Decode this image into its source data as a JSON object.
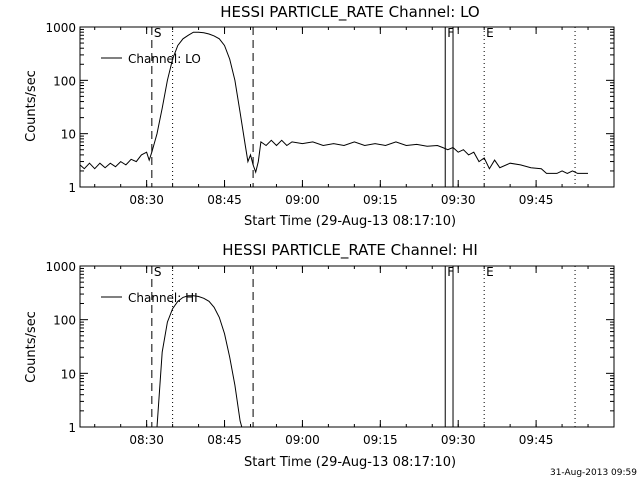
{
  "footer": {
    "timestamp": "31-Aug-2013 09:59"
  },
  "chart_data": [
    {
      "type": "line",
      "title": "HESSI PARTICLE_RATE Channel: LO",
      "xlabel": "Start Time (29-Aug-13 08:17:10)",
      "ylabel": "Counts/sec",
      "yscale": "log",
      "ylim": [
        1,
        1000
      ],
      "xlim": [
        "08:17:10",
        "10:00:00"
      ],
      "xticks": [
        "08:30",
        "08:45",
        "09:00",
        "09:15",
        "09:30",
        "09:45"
      ],
      "yticks": [
        "1",
        "10",
        "100",
        "1000"
      ],
      "legend": {
        "label": "Channel: LO",
        "placement": "top-left"
      },
      "markers": [
        {
          "time": "08:31:00",
          "label": "S",
          "style": "dashed"
        },
        {
          "time": "08:35:00",
          "label": "",
          "style": "dotted"
        },
        {
          "time": "08:50:30",
          "label": "",
          "style": "dashed"
        },
        {
          "time": "09:27:30",
          "label": "F",
          "style": "solid"
        },
        {
          "time": "09:29:00",
          "label": "",
          "style": "solid"
        },
        {
          "time": "09:35:00",
          "label": "E",
          "style": "dotted"
        },
        {
          "time": "09:52:30",
          "label": "",
          "style": "dotted"
        }
      ],
      "series": [
        {
          "name": "Channel: LO",
          "points": [
            [
              "08:17:10",
              2.6
            ],
            [
              "08:18:00",
              2.2
            ],
            [
              "08:19:00",
              2.8
            ],
            [
              "08:20:00",
              2.2
            ],
            [
              "08:21:00",
              2.8
            ],
            [
              "08:22:00",
              2.3
            ],
            [
              "08:23:00",
              2.8
            ],
            [
              "08:24:00",
              2.4
            ],
            [
              "08:25:00",
              3.0
            ],
            [
              "08:26:00",
              2.6
            ],
            [
              "08:27:00",
              3.3
            ],
            [
              "08:28:00",
              3.0
            ],
            [
              "08:29:00",
              4.0
            ],
            [
              "08:30:00",
              4.5
            ],
            [
              "08:30:30",
              3.2
            ],
            [
              "08:31:00",
              4.5
            ],
            [
              "08:32:00",
              10
            ],
            [
              "08:33:00",
              30
            ],
            [
              "08:34:00",
              100
            ],
            [
              "08:35:00",
              250
            ],
            [
              "08:36:00",
              450
            ],
            [
              "08:37:00",
              600
            ],
            [
              "08:38:00",
              700
            ],
            [
              "08:39:00",
              800
            ],
            [
              "08:40:00",
              800
            ],
            [
              "08:41:00",
              780
            ],
            [
              "08:42:00",
              740
            ],
            [
              "08:43:00",
              680
            ],
            [
              "08:44:00",
              600
            ],
            [
              "08:45:00",
              450
            ],
            [
              "08:46:00",
              250
            ],
            [
              "08:47:00",
              100
            ],
            [
              "08:48:00",
              25
            ],
            [
              "08:49:00",
              6
            ],
            [
              "08:49:30",
              3
            ],
            [
              "08:50:00",
              4
            ],
            [
              "08:50:30",
              2.6
            ],
            [
              "08:51:00",
              1.9
            ],
            [
              "08:51:30",
              3
            ],
            [
              "08:52:00",
              7
            ],
            [
              "08:53:00",
              6
            ],
            [
              "08:54:00",
              7.5
            ],
            [
              "08:55:00",
              6
            ],
            [
              "08:56:00",
              7.5
            ],
            [
              "08:57:00",
              6
            ],
            [
              "08:58:00",
              7
            ],
            [
              "09:00:00",
              6.5
            ],
            [
              "09:02:00",
              7
            ],
            [
              "09:04:00",
              6
            ],
            [
              "09:06:00",
              6.5
            ],
            [
              "09:08:00",
              6
            ],
            [
              "09:10:00",
              7
            ],
            [
              "09:12:00",
              6
            ],
            [
              "09:14:00",
              6.5
            ],
            [
              "09:16:00",
              6
            ],
            [
              "09:18:00",
              7
            ],
            [
              "09:20:00",
              6
            ],
            [
              "09:22:00",
              6.3
            ],
            [
              "09:24:00",
              5.8
            ],
            [
              "09:26:00",
              6
            ],
            [
              "09:27:00",
              5.5
            ],
            [
              "09:28:00",
              5
            ],
            [
              "09:29:00",
              5.5
            ],
            [
              "09:30:00",
              4.5
            ],
            [
              "09:31:00",
              5
            ],
            [
              "09:32:00",
              4
            ],
            [
              "09:33:00",
              4.5
            ],
            [
              "09:34:00",
              3
            ],
            [
              "09:35:00",
              3.5
            ],
            [
              "09:36:00",
              2.2
            ],
            [
              "09:37:00",
              3.2
            ],
            [
              "09:38:00",
              2.3
            ],
            [
              "09:40:00",
              2.8
            ],
            [
              "09:42:00",
              2.6
            ],
            [
              "09:44:00",
              2.3
            ],
            [
              "09:46:00",
              2.2
            ],
            [
              "09:47:00",
              1.8
            ],
            [
              "09:49:00",
              1.8
            ],
            [
              "09:50:00",
              2.0
            ],
            [
              "09:51:00",
              1.8
            ],
            [
              "09:52:00",
              2.0
            ],
            [
              "09:53:00",
              1.8
            ],
            [
              "09:55:00",
              1.8
            ]
          ]
        }
      ]
    },
    {
      "type": "line",
      "title": "HESSI PARTICLE_RATE Channel: HI",
      "xlabel": "Start Time (29-Aug-13 08:17:10)",
      "ylabel": "Counts/sec",
      "yscale": "log",
      "ylim": [
        1,
        1000
      ],
      "xlim": [
        "08:17:10",
        "10:00:00"
      ],
      "xticks": [
        "08:30",
        "08:45",
        "09:00",
        "09:15",
        "09:30",
        "09:45"
      ],
      "yticks": [
        "1",
        "10",
        "100",
        "1000"
      ],
      "legend": {
        "label": "Channel: HI",
        "placement": "top-left"
      },
      "markers": [
        {
          "time": "08:31:00",
          "label": "S",
          "style": "dashed"
        },
        {
          "time": "08:35:00",
          "label": "",
          "style": "dotted"
        },
        {
          "time": "08:50:30",
          "label": "",
          "style": "dashed"
        },
        {
          "time": "09:27:30",
          "label": "F",
          "style": "solid"
        },
        {
          "time": "09:29:00",
          "label": "",
          "style": "solid"
        },
        {
          "time": "09:35:00",
          "label": "E",
          "style": "dotted"
        },
        {
          "time": "09:52:30",
          "label": "",
          "style": "dotted"
        }
      ],
      "series": [
        {
          "name": "Channel: HI",
          "points": [
            [
              "08:32:00",
              1
            ],
            [
              "08:32:30",
              5
            ],
            [
              "08:33:00",
              25
            ],
            [
              "08:34:00",
              90
            ],
            [
              "08:35:00",
              160
            ],
            [
              "08:36:00",
              220
            ],
            [
              "08:37:00",
              260
            ],
            [
              "08:38:00",
              280
            ],
            [
              "08:39:00",
              280
            ],
            [
              "08:40:00",
              270
            ],
            [
              "08:41:00",
              250
            ],
            [
              "08:42:00",
              220
            ],
            [
              "08:43:00",
              170
            ],
            [
              "08:44:00",
              110
            ],
            [
              "08:45:00",
              55
            ],
            [
              "08:46:00",
              20
            ],
            [
              "08:47:00",
              6
            ],
            [
              "08:48:00",
              1.3
            ],
            [
              "08:48:20",
              1
            ]
          ]
        }
      ]
    }
  ]
}
